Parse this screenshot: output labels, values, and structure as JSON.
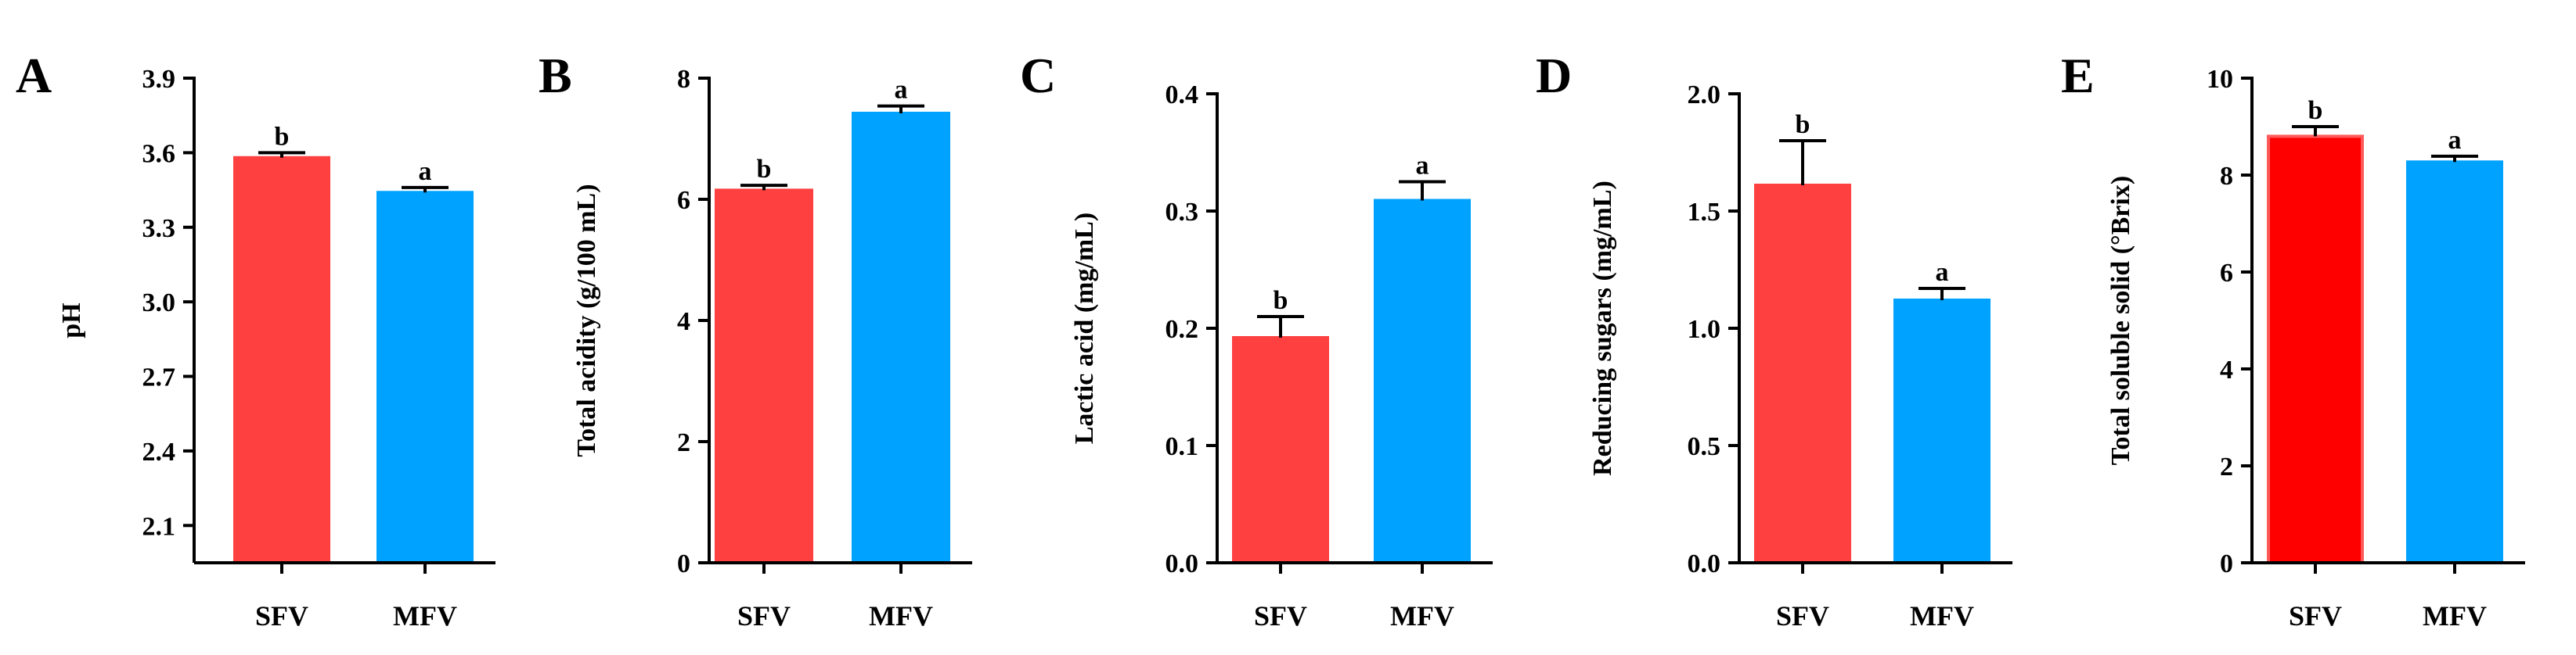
{
  "chart_data": [
    {
      "type": "bar",
      "panel": "A",
      "ylabel": "pH",
      "categories": [
        "SFV",
        "MFV"
      ],
      "values": [
        3.58,
        3.44
      ],
      "errors": [
        0.02,
        0.02
      ],
      "significance": [
        "b",
        "a"
      ],
      "ylim": [
        1.95,
        3.9
      ],
      "yticks": [
        2.1,
        2.4,
        2.7,
        3.0,
        3.3,
        3.6,
        3.9
      ],
      "ytick_labels": [
        "2.1",
        "2.4",
        "2.7",
        "3.0",
        "3.3",
        "3.6",
        "3.9"
      ],
      "colors": [
        "#FF4040",
        "#00A2FF"
      ],
      "grid": false
    },
    {
      "type": "bar",
      "panel": "B",
      "ylabel": "Total acidity (g/100 mL)",
      "categories": [
        "SFV",
        "MFV"
      ],
      "values": [
        6.15,
        7.42
      ],
      "errors": [
        0.08,
        0.12
      ],
      "significance": [
        "b",
        "a"
      ],
      "ylim": [
        0,
        8
      ],
      "yticks": [
        0,
        2,
        4,
        6,
        8
      ],
      "ytick_labels": [
        "0",
        "2",
        "4",
        "6",
        "8"
      ],
      "colors": [
        "#FF4040",
        "#00A2FF"
      ],
      "grid": false
    },
    {
      "type": "bar",
      "panel": "C",
      "ylabel": "Lactic acid (mg/mL)",
      "categories": [
        "SFV",
        "MFV"
      ],
      "values": [
        0.192,
        0.309
      ],
      "errors": [
        0.018,
        0.016
      ],
      "significance": [
        "b",
        "a"
      ],
      "ylim": [
        0,
        0.4
      ],
      "yticks": [
        0.0,
        0.1,
        0.2,
        0.3,
        0.4
      ],
      "ytick_labels": [
        "0.0",
        "0.1",
        "0.2",
        "0.3",
        "0.4"
      ],
      "colors": [
        "#FF4040",
        "#00A2FF"
      ],
      "grid": false
    },
    {
      "type": "bar",
      "panel": "D",
      "ylabel": "Reducing sugars (mg/mL)",
      "categories": [
        "SFV",
        "MFV"
      ],
      "values": [
        1.61,
        1.12
      ],
      "errors": [
        0.19,
        0.05
      ],
      "significance": [
        "b",
        "a"
      ],
      "ylim": [
        0,
        2.0
      ],
      "yticks": [
        0.0,
        0.5,
        1.0,
        1.5,
        2.0
      ],
      "ytick_labels": [
        "0.0",
        "0.5",
        "1.0",
        "1.5",
        "2.0"
      ],
      "colors": [
        "#FF4040",
        "#00A2FF"
      ],
      "grid": false
    },
    {
      "type": "bar",
      "panel": "E",
      "ylabel": "Total soluble solid (°Brix)",
      "categories": [
        "SFV",
        "MFV"
      ],
      "values": [
        8.8,
        8.27
      ],
      "errors": [
        0.2,
        0.12
      ],
      "significance": [
        "b",
        "a"
      ],
      "ylim": [
        0,
        10
      ],
      "yticks": [
        0,
        2,
        4,
        6,
        8,
        10
      ],
      "ytick_labels": [
        "0",
        "2",
        "4",
        "6",
        "8",
        "10"
      ],
      "colors": [
        "#FF0000",
        "#00A2FF"
      ],
      "grid": false
    }
  ]
}
